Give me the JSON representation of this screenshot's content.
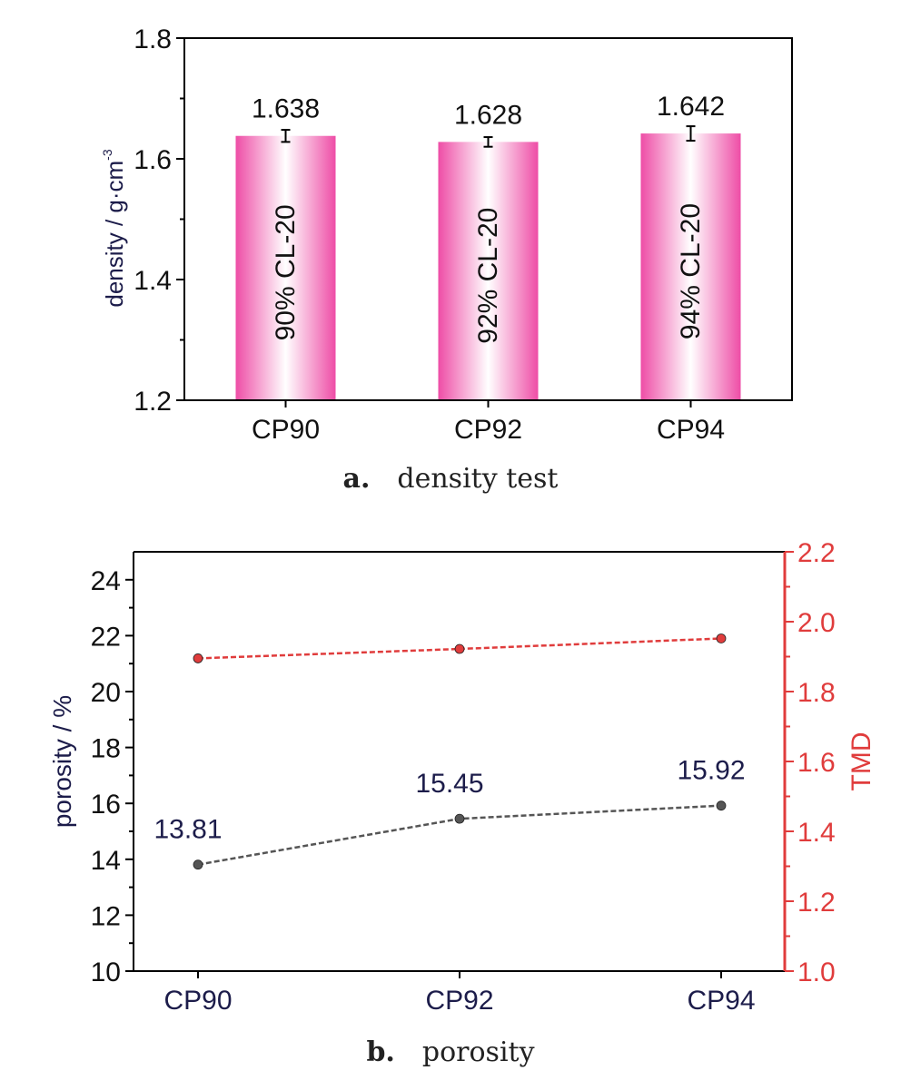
{
  "chart_data": [
    {
      "type": "bar",
      "panel_letter": "a.",
      "caption": "density test",
      "categories": [
        "CP90",
        "CP92",
        "CP94"
      ],
      "values": [
        1.638,
        1.628,
        1.642
      ],
      "value_labels": [
        "1.638",
        "1.628",
        "1.642"
      ],
      "error": [
        0.01,
        0.008,
        0.012
      ],
      "bar_labels": [
        "90% CL-20",
        "92% CL-20",
        "94% CL-20"
      ],
      "ylabel": "density / g·cm",
      "ylabel_sup": "-3",
      "ylim": [
        1.2,
        1.8
      ],
      "yticks": [
        "1.2",
        "1.4",
        "1.6",
        "1.8"
      ],
      "bar_color": "#ee4da6"
    },
    {
      "type": "line",
      "panel_letter": "b.",
      "caption": "porosity",
      "categories": [
        "CP90",
        "CP92",
        "CP94"
      ],
      "series": [
        {
          "name": "porosity",
          "axis": "left",
          "values": [
            13.81,
            15.45,
            15.92
          ],
          "value_labels": [
            "13.81",
            "15.45",
            "15.92"
          ],
          "color": "#555555"
        },
        {
          "name": "TMD",
          "axis": "right",
          "values": [
            1.895,
            1.922,
            1.952
          ],
          "color": "#e03c3c"
        }
      ],
      "ylabel": "porosity / %",
      "y2label": "TMD",
      "ylim": [
        10,
        25
      ],
      "yticks": [
        "10",
        "12",
        "14",
        "16",
        "18",
        "20",
        "22",
        "24"
      ],
      "y2lim": [
        1.0,
        2.2
      ],
      "y2ticks": [
        "1.0",
        "1.2",
        "1.4",
        "1.6",
        "1.8",
        "2.0",
        "2.2"
      ],
      "y2_color": "#e03c3c",
      "axis_label_color": "#1c1c4a"
    }
  ]
}
